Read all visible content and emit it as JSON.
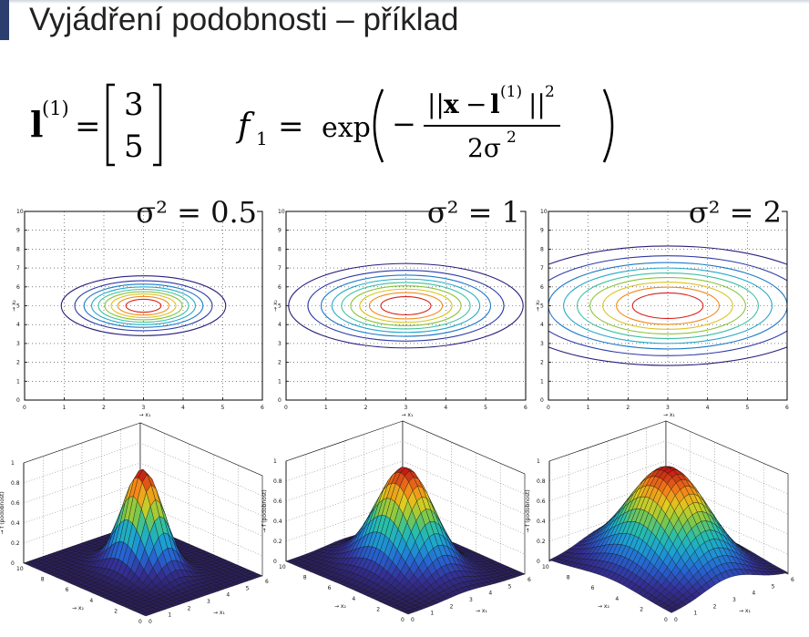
{
  "slide": {
    "title": "Vyjádření podobnosti – příklad"
  },
  "formulas": {
    "landmark_symbol": "l",
    "landmark_superscript": "(1)",
    "landmark_values": [
      "3",
      "5"
    ],
    "feature_lhs": "f",
    "feature_subscript": "1",
    "exp": "exp",
    "norm_x": "x",
    "norm_l": "l",
    "norm_sup": "(1)",
    "norm_exp": "2",
    "denom": "2σ",
    "denom_exp": "2"
  },
  "colors": {
    "contour_levels": [
      "#2b1f7a",
      "#2c3aa6",
      "#1f78c8",
      "#25a8c7",
      "#3ec0a0",
      "#8bc43c",
      "#d9c31f",
      "#f08a1c",
      "#d8221c"
    ],
    "surface_low": "#2b1f5a",
    "surface_high": "#b51414"
  },
  "chart_data": [
    {
      "type": "contour",
      "title": "σ² = 0.5",
      "sigma2": 0.5,
      "center": [
        3,
        5
      ],
      "x_ticks": [
        "0",
        "1",
        "2",
        "3",
        "4",
        "5",
        "6"
      ],
      "y_ticks": [
        "0",
        "1",
        "2",
        "3",
        "4",
        "5",
        "6",
        "7",
        "8",
        "9",
        "10"
      ],
      "xlim": [
        0,
        6
      ],
      "ylim": [
        0,
        10
      ],
      "xlabel": "→ x₁",
      "ylabel": "→ x₂",
      "grid": true
    },
    {
      "type": "contour",
      "title": "σ² = 1",
      "sigma2": 1,
      "center": [
        3,
        5
      ],
      "x_ticks": [
        "0",
        "1",
        "2",
        "3",
        "4",
        "5",
        "6"
      ],
      "y_ticks": [
        "0",
        "1",
        "2",
        "3",
        "4",
        "5",
        "6",
        "7",
        "8",
        "9",
        "10"
      ],
      "xlim": [
        0,
        6
      ],
      "ylim": [
        0,
        10
      ],
      "xlabel": "→ x₁",
      "ylabel": "→ x₂",
      "grid": true
    },
    {
      "type": "contour",
      "title": "σ² = 2",
      "sigma2": 2,
      "center": [
        3,
        5
      ],
      "x_ticks": [
        "0",
        "1",
        "2",
        "3",
        "4",
        "5",
        "6"
      ],
      "y_ticks": [
        "0",
        "1",
        "2",
        "3",
        "4",
        "5",
        "6",
        "7",
        "8",
        "9",
        "10"
      ],
      "xlim": [
        0,
        6
      ],
      "ylim": [
        0,
        10
      ],
      "xlabel": "→ x₁",
      "ylabel": "→ x₂",
      "grid": true
    },
    {
      "type": "surface",
      "sigma2": 0.5,
      "center": [
        3,
        5
      ],
      "z_ticks": [
        "0",
        "0.2",
        "0.4",
        "0.6",
        "0.8",
        "1"
      ],
      "x_ticks": [
        "0",
        "1",
        "2",
        "3",
        "4",
        "5",
        "6"
      ],
      "y_ticks": [
        "10",
        "8",
        "6",
        "4",
        "2",
        "0"
      ],
      "zlim": [
        0,
        1
      ],
      "zlabel": "→ f (podobnost)",
      "xlabel": "→ x₁",
      "ylabel": "→ x₂",
      "grid": true
    },
    {
      "type": "surface",
      "sigma2": 1,
      "center": [
        3,
        5
      ],
      "z_ticks": [
        "0",
        "0.2",
        "0.4",
        "0.6",
        "0.8",
        "1"
      ],
      "x_ticks": [
        "0",
        "1",
        "2",
        "3",
        "4",
        "5",
        "6"
      ],
      "y_ticks": [
        "10",
        "8",
        "6",
        "4",
        "2",
        "0"
      ],
      "zlim": [
        0,
        1
      ],
      "zlabel": "→ f (podobnost)",
      "xlabel": "→ x₁",
      "ylabel": "→ x₂",
      "grid": true
    },
    {
      "type": "surface",
      "sigma2": 2,
      "center": [
        3,
        5
      ],
      "z_ticks": [
        "0",
        "0.2",
        "0.4",
        "0.6",
        "0.8",
        "1"
      ],
      "x_ticks": [
        "0",
        "1",
        "2",
        "3",
        "4",
        "5",
        "6"
      ],
      "y_ticks": [
        "10",
        "8",
        "6",
        "4",
        "2",
        "0"
      ],
      "zlim": [
        0,
        1
      ],
      "zlabel": "→ f (podobnost)",
      "xlabel": "→ x₁",
      "ylabel": "→ x₂",
      "grid": true
    }
  ]
}
